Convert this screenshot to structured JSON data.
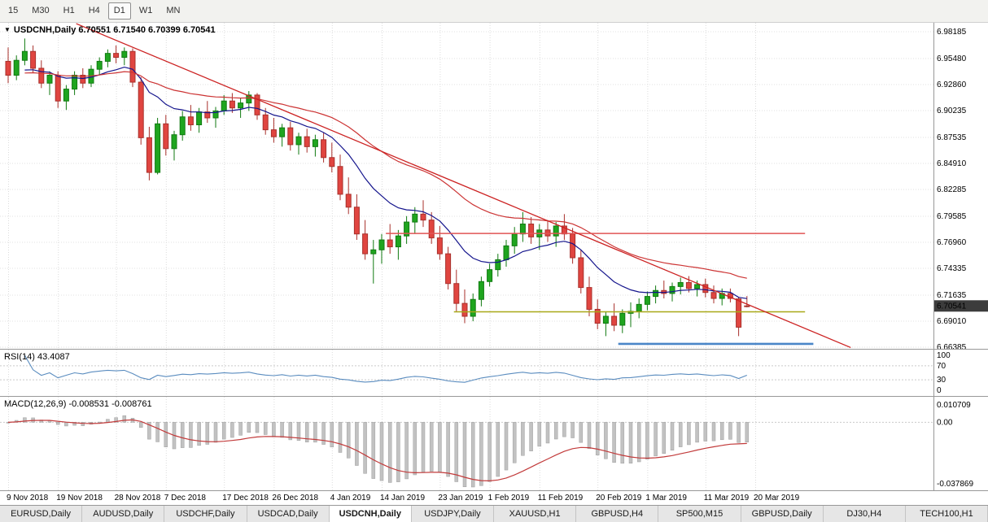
{
  "toolbar": {
    "timeframes": [
      {
        "label": "15",
        "active": false
      },
      {
        "label": "M30",
        "active": false
      },
      {
        "label": "H1",
        "active": false
      },
      {
        "label": "H4",
        "active": false
      },
      {
        "label": "D1",
        "active": true
      },
      {
        "label": "W1",
        "active": false
      },
      {
        "label": "MN",
        "active": false
      }
    ]
  },
  "icons": {
    "chart_menu": "▼"
  },
  "chart_data": {
    "type": "candlestick",
    "symbol": "USDCNH",
    "timeframe": "Daily",
    "price_title": "USDCNH,Daily 6.70551 6.71540 6.70399 6.70541",
    "ohlc": {
      "open": 6.70551,
      "high": 6.7154,
      "low": 6.70399,
      "close": 6.70541
    },
    "current_price_label": "6.70541",
    "price_axis_labels": [
      "6.98185",
      "6.95480",
      "6.92860",
      "6.90235",
      "6.87535",
      "6.84910",
      "6.82285",
      "6.79585",
      "6.76960",
      "6.74335",
      "6.71635",
      "6.69010",
      "6.66385"
    ],
    "x_ticks": [
      {
        "label": "9 Nov 2018",
        "i": 0
      },
      {
        "label": "19 Nov 2018",
        "i": 6
      },
      {
        "label": "28 Nov 2018",
        "i": 13
      },
      {
        "label": "7 Dec 2018",
        "i": 19
      },
      {
        "label": "17 Dec 2018",
        "i": 26
      },
      {
        "label": "26 Dec 2018",
        "i": 32
      },
      {
        "label": "4 Jan 2019",
        "i": 39
      },
      {
        "label": "14 Jan 2019",
        "i": 45
      },
      {
        "label": "23 Jan 2019",
        "i": 52
      },
      {
        "label": "1 Feb 2019",
        "i": 58
      },
      {
        "label": "11 Feb 2019",
        "i": 64
      },
      {
        "label": "20 Feb 2019",
        "i": 71
      },
      {
        "label": "1 Mar 2019",
        "i": 77
      },
      {
        "label": "11 Mar 2019",
        "i": 84
      },
      {
        "label": "20 Mar 2019",
        "i": 90
      }
    ],
    "candles": [
      [
        6.952,
        6.966,
        6.93,
        6.938
      ],
      [
        6.938,
        6.958,
        6.933,
        6.953
      ],
      [
        6.953,
        6.975,
        6.948,
        6.962
      ],
      [
        6.962,
        6.968,
        6.94,
        6.945
      ],
      [
        6.945,
        6.953,
        6.925,
        6.93
      ],
      [
        6.93,
        6.942,
        6.918,
        6.938
      ],
      [
        6.938,
        6.942,
        6.905,
        6.912
      ],
      [
        6.912,
        6.928,
        6.903,
        6.924
      ],
      [
        6.924,
        6.942,
        6.918,
        6.938
      ],
      [
        6.938,
        6.945,
        6.925,
        6.93
      ],
      [
        6.93,
        6.948,
        6.926,
        6.944
      ],
      [
        6.944,
        6.956,
        6.938,
        6.952
      ],
      [
        6.952,
        6.964,
        6.946,
        6.96
      ],
      [
        6.96,
        6.968,
        6.95,
        6.956
      ],
      [
        6.956,
        6.966,
        6.948,
        6.962
      ],
      [
        6.962,
        6.965,
        6.926,
        6.931
      ],
      [
        6.931,
        6.936,
        6.868,
        6.875
      ],
      [
        6.875,
        6.886,
        6.832,
        6.84
      ],
      [
        6.84,
        6.895,
        6.838,
        6.889
      ],
      [
        6.889,
        6.898,
        6.857,
        6.864
      ],
      [
        6.864,
        6.882,
        6.852,
        6.878
      ],
      [
        6.878,
        6.902,
        6.872,
        6.896
      ],
      [
        6.896,
        6.908,
        6.882,
        6.888
      ],
      [
        6.888,
        6.905,
        6.88,
        6.901
      ],
      [
        6.901,
        6.912,
        6.89,
        6.895
      ],
      [
        6.895,
        6.906,
        6.885,
        6.902
      ],
      [
        6.902,
        6.918,
        6.898,
        6.912
      ],
      [
        6.912,
        6.92,
        6.9,
        6.905
      ],
      [
        6.905,
        6.915,
        6.895,
        6.91
      ],
      [
        6.91,
        6.922,
        6.902,
        6.918
      ],
      [
        6.918,
        6.92,
        6.893,
        6.898
      ],
      [
        6.898,
        6.905,
        6.878,
        6.883
      ],
      [
        6.883,
        6.895,
        6.87,
        6.876
      ],
      [
        6.876,
        6.889,
        6.866,
        6.885
      ],
      [
        6.885,
        6.891,
        6.862,
        6.868
      ],
      [
        6.868,
        6.88,
        6.858,
        6.876
      ],
      [
        6.876,
        6.884,
        6.86,
        6.866
      ],
      [
        6.866,
        6.878,
        6.856,
        6.873
      ],
      [
        6.873,
        6.88,
        6.85,
        6.855
      ],
      [
        6.855,
        6.87,
        6.84,
        6.846
      ],
      [
        6.846,
        6.858,
        6.812,
        6.818
      ],
      [
        6.818,
        6.835,
        6.798,
        6.805
      ],
      [
        6.805,
        6.818,
        6.772,
        6.778
      ],
      [
        6.778,
        6.792,
        6.752,
        6.758
      ],
      [
        6.758,
        6.772,
        6.728,
        6.762
      ],
      [
        6.762,
        6.778,
        6.748,
        6.772
      ],
      [
        6.772,
        6.788,
        6.758,
        6.765
      ],
      [
        6.765,
        6.782,
        6.752,
        6.776
      ],
      [
        6.776,
        6.796,
        6.768,
        6.79
      ],
      [
        6.79,
        6.805,
        6.778,
        6.798
      ],
      [
        6.798,
        6.812,
        6.785,
        6.792
      ],
      [
        6.792,
        6.8,
        6.768,
        6.774
      ],
      [
        6.774,
        6.786,
        6.752,
        6.758
      ],
      [
        6.758,
        6.765,
        6.722,
        6.728
      ],
      [
        6.728,
        6.742,
        6.7,
        6.708
      ],
      [
        6.708,
        6.722,
        6.688,
        6.695
      ],
      [
        6.695,
        6.718,
        6.69,
        6.712
      ],
      [
        6.712,
        6.735,
        6.705,
        6.73
      ],
      [
        6.73,
        6.748,
        6.725,
        6.742
      ],
      [
        6.742,
        6.758,
        6.735,
        6.752
      ],
      [
        6.752,
        6.772,
        6.745,
        6.766
      ],
      [
        6.766,
        6.785,
        6.758,
        6.778
      ],
      [
        6.778,
        6.8,
        6.77,
        6.788
      ],
      [
        6.788,
        6.795,
        6.768,
        6.775
      ],
      [
        6.775,
        6.788,
        6.762,
        6.782
      ],
      [
        6.782,
        6.792,
        6.77,
        6.776
      ],
      [
        6.776,
        6.79,
        6.765,
        6.786
      ],
      [
        6.786,
        6.798,
        6.772,
        6.778
      ],
      [
        6.778,
        6.784,
        6.748,
        6.754
      ],
      [
        6.754,
        6.762,
        6.718,
        6.724
      ],
      [
        6.724,
        6.735,
        6.695,
        6.702
      ],
      [
        6.702,
        6.712,
        6.682,
        6.688
      ],
      [
        6.688,
        6.7,
        6.675,
        6.695
      ],
      [
        6.695,
        6.708,
        6.68,
        6.686
      ],
      [
        6.686,
        6.702,
        6.678,
        6.698
      ],
      [
        6.698,
        6.709,
        6.684,
        6.7
      ],
      [
        6.7,
        6.713,
        6.693,
        6.707
      ],
      [
        6.707,
        6.72,
        6.701,
        6.715
      ],
      [
        6.715,
        6.726,
        6.708,
        6.721
      ],
      [
        6.721,
        6.731,
        6.713,
        6.718
      ],
      [
        6.718,
        6.729,
        6.71,
        6.725
      ],
      [
        6.725,
        6.734,
        6.717,
        6.729
      ],
      [
        6.729,
        6.7355,
        6.719,
        6.723
      ],
      [
        6.723,
        6.731,
        6.715,
        6.727
      ],
      [
        6.727,
        6.733,
        6.714,
        6.719
      ],
      [
        6.719,
        6.726,
        6.708,
        6.713
      ],
      [
        6.713,
        6.723,
        6.706,
        6.718
      ],
      [
        6.718,
        6.723,
        6.709,
        6.713
      ],
      [
        6.7125,
        6.714,
        6.675,
        6.684
      ],
      [
        6.70551,
        6.7154,
        6.70399,
        6.70541
      ]
    ],
    "colors": {
      "up": "#1fa51f",
      "up_border": "#117a11",
      "down": "#e04540",
      "down_border": "#a8302b"
    },
    "overlays": {
      "ma_fast": {
        "period": 13,
        "color": "#14148c"
      },
      "ma_slow": {
        "period": 34,
        "color": "#cc3333"
      },
      "trendline": {
        "i1": 8.2,
        "p1": 6.99,
        "i2": 101.5,
        "p2": 6.6635,
        "color": "#cc2222"
      },
      "hlines": [
        {
          "price": 6.7785,
          "i1": 45.5,
          "i2": 96,
          "color": "#e05555",
          "width": 1.4
        },
        {
          "price": 6.6995,
          "i1": 53.7,
          "i2": 96,
          "color": "#a8a818",
          "width": 1.6
        },
        {
          "price": 6.6672,
          "i1": 73.5,
          "i2": 97,
          "color": "#4a86c8",
          "width": 2.6
        }
      ]
    },
    "rsi": {
      "title_full": "RSI(14) 43.4087",
      "period": 14,
      "value": 43.4087,
      "axis_labels": [
        "100",
        "70",
        "30",
        "0"
      ],
      "axis_values": [
        100,
        70,
        30,
        0
      ],
      "levels_dotted": [
        70,
        30
      ],
      "color": "#5a8cbf"
    },
    "macd": {
      "title_full": "MACD(12,26,9) -0.008531 -0.008761",
      "fast": 12,
      "slow": 26,
      "signal": 9,
      "main_value": -0.008531,
      "signal_value": -0.008761,
      "axis_labels": [
        "0.010709",
        "0.00",
        "-0.037869"
      ],
      "axis_values": [
        0.010709,
        0,
        -0.037869
      ],
      "hist_color": "#c2c2c2",
      "hist_border": "#9f9f9f",
      "signal_color": "#c23b3b"
    }
  },
  "tabs": [
    {
      "label": "EURUSD,Daily",
      "active": false
    },
    {
      "label": "AUDUSD,Daily",
      "active": false
    },
    {
      "label": "USDCHF,Daily",
      "active": false
    },
    {
      "label": "USDCAD,Daily",
      "active": false
    },
    {
      "label": "USDCNH,Daily",
      "active": true
    },
    {
      "label": "USDJPY,Daily",
      "active": false
    },
    {
      "label": "XAUUSD,H1",
      "active": false
    },
    {
      "label": "GBPUSD,H4",
      "active": false
    },
    {
      "label": "SP500,M15",
      "active": false
    },
    {
      "label": "GBPUSD,Daily",
      "active": false
    },
    {
      "label": "DJ30,H4",
      "active": false
    },
    {
      "label": "TECH100,H1",
      "active": false
    }
  ]
}
